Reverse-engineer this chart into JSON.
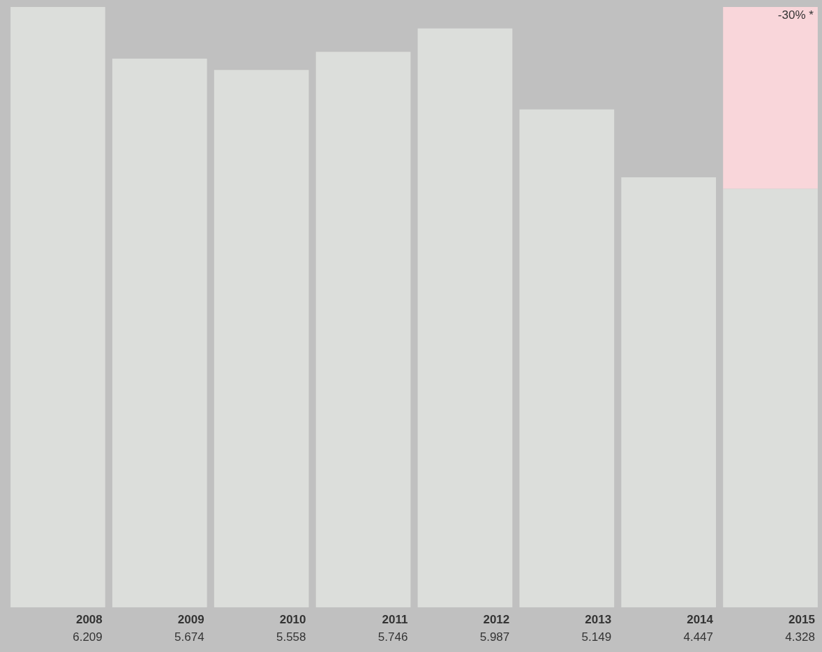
{
  "chart_data": {
    "type": "bar",
    "stacked": true,
    "categories": [
      "2008",
      "2009",
      "2010",
      "2011",
      "2012",
      "2013",
      "2014",
      "2015"
    ],
    "series": [
      {
        "color": "#dcdedb",
        "values": [
          6.209,
          5.674,
          5.558,
          5.746,
          5.987,
          5.149,
          4.447,
          4.328
        ],
        "value_labels": [
          "6.209",
          "5.674",
          "5.558",
          "5.746",
          "5.987",
          "5.149",
          "4.447",
          "4.328"
        ]
      },
      {
        "color": "#f9d6da",
        "values": [
          null,
          null,
          null,
          null,
          null,
          null,
          null,
          1.881
        ]
      }
    ],
    "annotations": [
      {
        "text": "-30% *",
        "x": "2015",
        "y": 6.209
      }
    ],
    "legend": false
  }
}
